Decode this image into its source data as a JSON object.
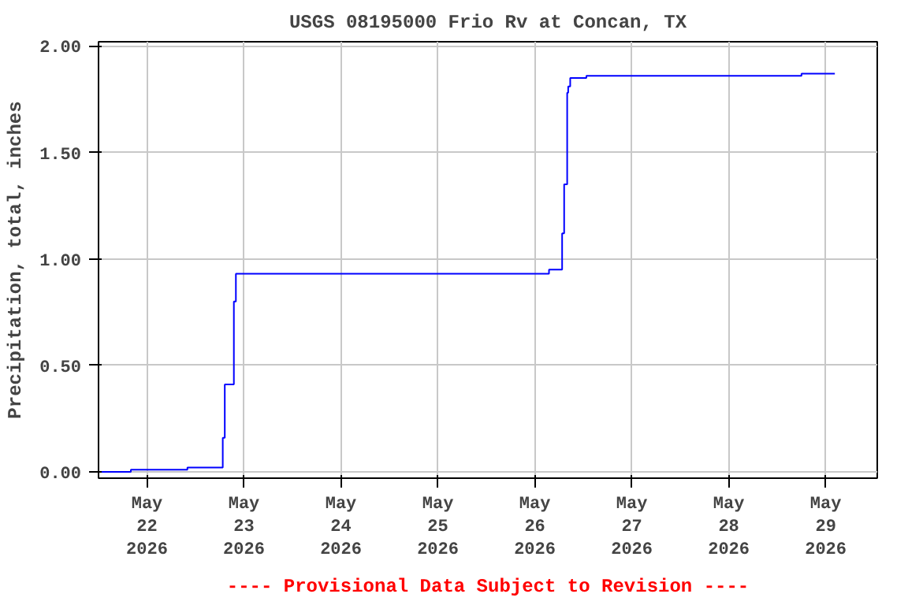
{
  "chart_data": {
    "type": "step",
    "title": "USGS 08195000 Frio Rv at Concan, TX",
    "ylabel": "Precipitation, total, inches",
    "annotations": [
      "---- Provisional Data Subject to Revision ----"
    ],
    "x": [
      "2026-05-21T12:00",
      "2026-05-21T20:00",
      "2026-05-22T10:00",
      "2026-05-22T18:45",
      "2026-05-22T19:15",
      "2026-05-22T21:30",
      "2026-05-22T22:00",
      "2026-05-26T03:30",
      "2026-05-26T06:45",
      "2026-05-26T07:15",
      "2026-05-26T08:00",
      "2026-05-26T08:15",
      "2026-05-26T08:45",
      "2026-05-26T12:45",
      "2026-05-28T18:00",
      "2026-05-29T02:15"
    ],
    "series": [
      {
        "color": "#0000ff",
        "values": [
          0.0,
          0.01,
          0.02,
          0.16,
          0.41,
          0.8,
          0.93,
          0.95,
          1.12,
          1.35,
          1.78,
          1.81,
          1.85,
          1.86,
          1.87,
          1.87
        ]
      }
    ],
    "xlim": [
      "2026-05-21T12:00",
      "2026-05-29T12:45"
    ],
    "xticks": [
      {
        "value": "2026-05-22",
        "label": "May\n22\n2026"
      },
      {
        "value": "2026-05-23",
        "label": "May\n23\n2026"
      },
      {
        "value": "2026-05-24",
        "label": "May\n24\n2026"
      },
      {
        "value": "2026-05-25",
        "label": "May\n25\n2026"
      },
      {
        "value": "2026-05-26",
        "label": "May\n26\n2026"
      },
      {
        "value": "2026-05-27",
        "label": "May\n27\n2026"
      },
      {
        "value": "2026-05-28",
        "label": "May\n28\n2026"
      },
      {
        "value": "2026-05-29",
        "label": "May\n29\n2026"
      }
    ],
    "ylim": [
      -0.03,
      2.02
    ],
    "yticks": [
      {
        "value": 0,
        "label": "0.00"
      },
      {
        "value": 0.5,
        "label": "0.50"
      },
      {
        "value": 1,
        "label": "1.00"
      },
      {
        "value": 1.5,
        "label": "1.50"
      },
      {
        "value": 2,
        "label": "2.00"
      }
    ],
    "grid": true,
    "line_style": "solid"
  }
}
